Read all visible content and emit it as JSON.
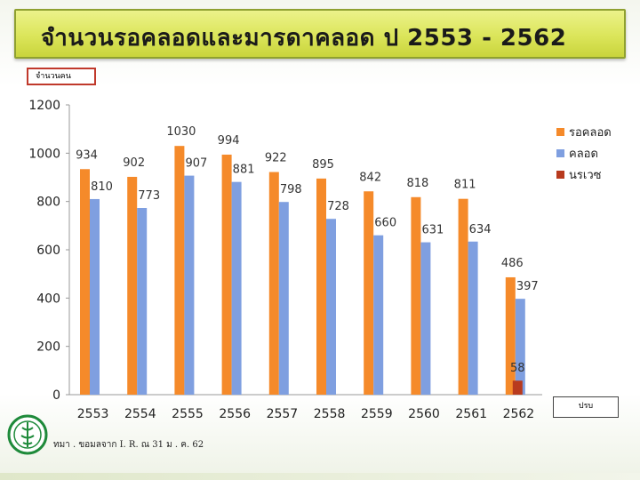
{
  "header": {
    "title": "จำนวนรอคลอดและมารดาคลอด  ป  2553 - 2562",
    "unit_label": "จำนวนคน"
  },
  "footer": {
    "note": "ทมา   . ขอมลจาก     I. R. ณ 31 ม  . ค. 62",
    "box_label": "ปรบ"
  },
  "chart_data": {
    "type": "bar",
    "categories": [
      "2553",
      "2554",
      "2555",
      "2556",
      "2557",
      "2558",
      "2559",
      "2560",
      "2561",
      "2562"
    ],
    "ylim": [
      0,
      1200
    ],
    "yticks": [
      0,
      200,
      400,
      600,
      800,
      1000,
      1200
    ],
    "grid": false,
    "legend_position": "right",
    "series": [
      {
        "name": "รอคลอด",
        "color": "#f58a2a",
        "values": [
          934,
          902,
          1030,
          994,
          922,
          895,
          842,
          818,
          811,
          486
        ]
      },
      {
        "name": "คลอด",
        "color": "#7f9fe0",
        "values": [
          810,
          773,
          907,
          881,
          798,
          728,
          660,
          631,
          634,
          397
        ]
      },
      {
        "name": "นรเวซ",
        "color": "#b83a1e",
        "values": [
          null,
          null,
          null,
          null,
          null,
          null,
          null,
          null,
          null,
          58
        ]
      }
    ]
  }
}
